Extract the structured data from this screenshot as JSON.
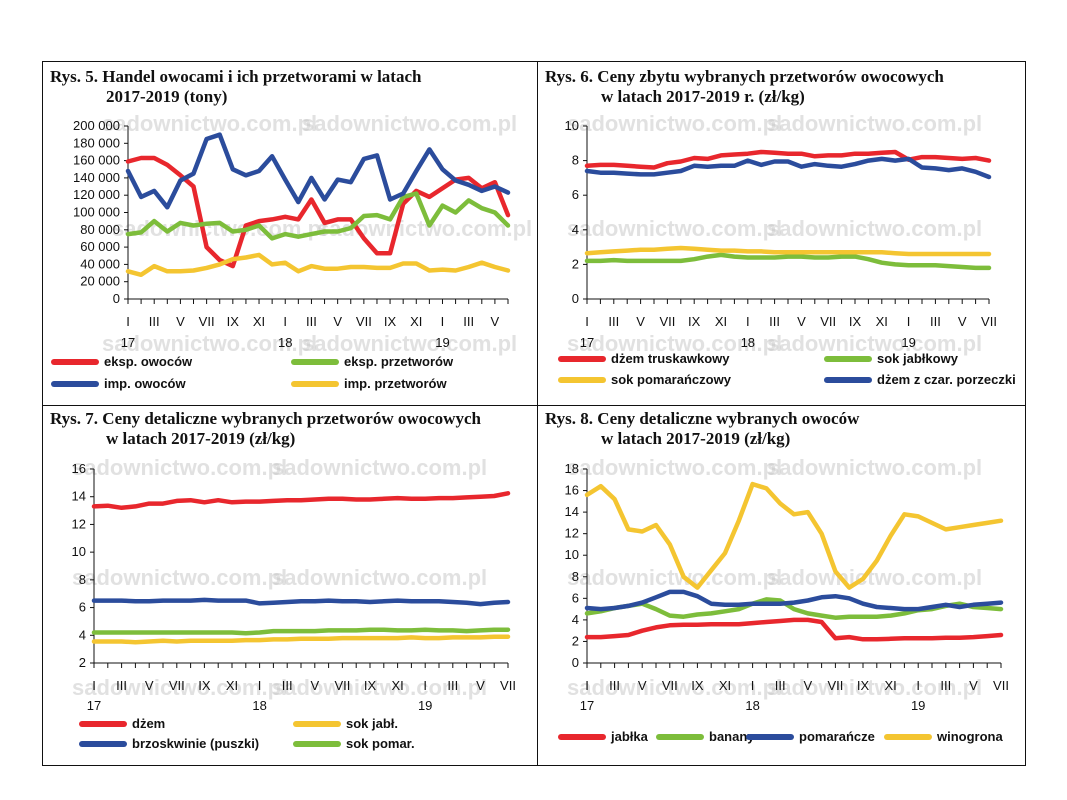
{
  "chart_data": [
    {
      "id": "rys5",
      "type": "line",
      "title_line1": "Rys. 5. Handel owocami i ich przetworami w latach",
      "title_line2": "2017-2019 (tony)",
      "ylim": [
        0,
        200000
      ],
      "y_ticks": [
        "0",
        "20 000",
        "40 000",
        "60 000",
        "80 000",
        "100 000",
        "120 000",
        "140 000",
        "160 000",
        "180 000",
        "200 000"
      ],
      "x_count": 30,
      "x_tick_labels": [
        "I",
        "III",
        "V",
        "VII",
        "IX",
        "XI",
        "I",
        "III",
        "V",
        "VII",
        "IX",
        "XI",
        "I",
        "III",
        "V"
      ],
      "year_labels": [
        {
          "label": "17",
          "index": 0
        },
        {
          "label": "18",
          "index": 12
        },
        {
          "label": "19",
          "index": 24
        }
      ],
      "watermark": "sadownictwo.com.pl",
      "series": [
        {
          "name": "eksp. owoców",
          "color": "#e8272d",
          "values": [
            159000,
            163000,
            163000,
            155000,
            143000,
            130000,
            60000,
            45000,
            38000,
            85000,
            90000,
            92000,
            95000,
            92000,
            115000,
            88000,
            92000,
            92000,
            70000,
            53000,
            53000,
            110000,
            125000,
            118000,
            128000,
            138000,
            140000,
            128000,
            135000,
            97000
          ]
        },
        {
          "name": "eksp. przetworów",
          "color": "#7dbd3b",
          "values": [
            75000,
            77000,
            90000,
            78000,
            88000,
            85000,
            87000,
            88000,
            78000,
            80000,
            85000,
            70000,
            75000,
            72000,
            75000,
            78000,
            78000,
            82000,
            96000,
            97000,
            92000,
            118000,
            122000,
            85000,
            108000,
            100000,
            114000,
            105000,
            100000,
            85000
          ]
        },
        {
          "name": "imp. owoców",
          "color": "#2b4c9c",
          "values": [
            148000,
            118000,
            125000,
            106000,
            137000,
            145000,
            185000,
            190000,
            150000,
            143000,
            148000,
            165000,
            138000,
            112000,
            140000,
            115000,
            138000,
            135000,
            162000,
            166000,
            115000,
            122000,
            148000,
            173000,
            150000,
            137000,
            132000,
            125000,
            130000,
            123000
          ]
        },
        {
          "name": "imp. przetworów",
          "color": "#f4c531",
          "values": [
            32000,
            28000,
            38000,
            32000,
            32000,
            33000,
            36000,
            40000,
            46000,
            48000,
            51000,
            40000,
            42000,
            32000,
            38000,
            35000,
            35000,
            37000,
            37000,
            36000,
            36000,
            41000,
            41000,
            33000,
            34000,
            33000,
            37000,
            42000,
            37000,
            33000
          ]
        }
      ]
    },
    {
      "id": "rys6",
      "type": "line",
      "title_line1": "Rys. 6. Ceny zbytu wybranych przetworów owocowych",
      "title_line2": "w latach 2017-2019 r. (zł/kg)",
      "ylim": [
        0,
        10
      ],
      "y_ticks": [
        "0",
        "2",
        "4",
        "6",
        "8",
        "10"
      ],
      "x_count": 31,
      "x_tick_labels": [
        "I",
        "III",
        "V",
        "VII",
        "IX",
        "XI",
        "I",
        "III",
        "V",
        "VII",
        "IX",
        "XI",
        "I",
        "III",
        "V",
        "VII"
      ],
      "year_labels": [
        {
          "label": "17",
          "index": 0
        },
        {
          "label": "18",
          "index": 12
        },
        {
          "label": "19",
          "index": 24
        }
      ],
      "watermark": "sadownictwo.com.pl",
      "series": [
        {
          "name": "dżem truskawkowy",
          "color": "#e8272d",
          "values": [
            7.7,
            7.75,
            7.75,
            7.7,
            7.65,
            7.6,
            7.85,
            7.95,
            8.15,
            8.1,
            8.3,
            8.35,
            8.4,
            8.5,
            8.45,
            8.4,
            8.4,
            8.25,
            8.3,
            8.3,
            8.4,
            8.4,
            8.45,
            8.5,
            8.05,
            8.2,
            8.2,
            8.15,
            8.1,
            8.15,
            8.0
          ]
        },
        {
          "name": "sok jabłkowy",
          "color": "#7dbd3b",
          "values": [
            2.2,
            2.2,
            2.25,
            2.2,
            2.2,
            2.2,
            2.2,
            2.2,
            2.3,
            2.45,
            2.55,
            2.45,
            2.4,
            2.4,
            2.4,
            2.45,
            2.45,
            2.4,
            2.4,
            2.45,
            2.45,
            2.3,
            2.1,
            2.0,
            1.95,
            1.95,
            1.95,
            1.9,
            1.85,
            1.8,
            1.8
          ]
        },
        {
          "name": "sok pomarańczowy",
          "color": "#f4c531",
          "values": [
            2.65,
            2.7,
            2.75,
            2.8,
            2.85,
            2.85,
            2.9,
            2.95,
            2.9,
            2.85,
            2.8,
            2.8,
            2.75,
            2.75,
            2.7,
            2.7,
            2.7,
            2.7,
            2.7,
            2.7,
            2.7,
            2.7,
            2.7,
            2.65,
            2.6,
            2.6,
            2.6,
            2.6,
            2.6,
            2.6,
            2.6
          ]
        },
        {
          "name": "dżem z czar. porzeczki",
          "color": "#2b4c9c",
          "values": [
            7.4,
            7.3,
            7.3,
            7.25,
            7.2,
            7.2,
            7.3,
            7.4,
            7.7,
            7.65,
            7.7,
            7.7,
            8.0,
            7.75,
            7.95,
            7.95,
            7.65,
            7.8,
            7.7,
            7.65,
            7.8,
            8.0,
            8.1,
            8.0,
            8.1,
            7.6,
            7.55,
            7.45,
            7.55,
            7.35,
            7.05
          ]
        }
      ]
    },
    {
      "id": "rys7",
      "type": "line",
      "title_line1": "Rys. 7. Ceny detaliczne wybranych przetworów owocowych",
      "title_line2": "w latach 2017-2019 (zł/kg)",
      "ylim": [
        2,
        16
      ],
      "y_ticks": [
        "2",
        "4",
        "6",
        "8",
        "10",
        "12",
        "14",
        "16"
      ],
      "x_count": 31,
      "x_tick_labels": [
        "I",
        "III",
        "V",
        "VII",
        "IX",
        "XI",
        "I",
        "III",
        "V",
        "VII",
        "IX",
        "XI",
        "I",
        "III",
        "V",
        "VII"
      ],
      "year_labels": [
        {
          "label": "17",
          "index": 0
        },
        {
          "label": "18",
          "index": 12
        },
        {
          "label": "19",
          "index": 24
        }
      ],
      "watermark": "sadownictwo.com.pl",
      "series": [
        {
          "name": "dżem",
          "color": "#e8272d",
          "values": [
            13.3,
            13.35,
            13.2,
            13.3,
            13.5,
            13.5,
            13.7,
            13.75,
            13.6,
            13.75,
            13.6,
            13.65,
            13.65,
            13.7,
            13.75,
            13.75,
            13.8,
            13.85,
            13.85,
            13.8,
            13.8,
            13.85,
            13.9,
            13.85,
            13.85,
            13.9,
            13.9,
            13.95,
            14.0,
            14.05,
            14.25
          ]
        },
        {
          "name": "sok jabł.",
          "color": "#f4c531",
          "values": [
            3.55,
            3.55,
            3.55,
            3.5,
            3.55,
            3.6,
            3.55,
            3.6,
            3.6,
            3.6,
            3.6,
            3.65,
            3.65,
            3.7,
            3.7,
            3.75,
            3.75,
            3.75,
            3.8,
            3.8,
            3.8,
            3.8,
            3.8,
            3.85,
            3.8,
            3.8,
            3.85,
            3.85,
            3.85,
            3.9,
            3.9
          ]
        },
        {
          "name": "brzoskwinie (puszki)",
          "color": "#2b4c9c",
          "values": [
            6.5,
            6.5,
            6.5,
            6.45,
            6.45,
            6.5,
            6.5,
            6.5,
            6.55,
            6.5,
            6.5,
            6.5,
            6.3,
            6.35,
            6.4,
            6.45,
            6.45,
            6.5,
            6.45,
            6.45,
            6.4,
            6.45,
            6.5,
            6.45,
            6.45,
            6.45,
            6.4,
            6.35,
            6.25,
            6.35,
            6.4
          ]
        },
        {
          "name": "sok pomar.",
          "color": "#7dbd3b",
          "values": [
            4.2,
            4.2,
            4.2,
            4.2,
            4.2,
            4.2,
            4.2,
            4.2,
            4.2,
            4.2,
            4.2,
            4.15,
            4.2,
            4.3,
            4.3,
            4.3,
            4.3,
            4.35,
            4.35,
            4.35,
            4.4,
            4.4,
            4.35,
            4.35,
            4.4,
            4.35,
            4.35,
            4.3,
            4.35,
            4.4,
            4.4
          ]
        }
      ]
    },
    {
      "id": "rys8",
      "type": "line",
      "title_line1": "Rys. 8. Ceny detaliczne wybranych owoców",
      "title_line2": "w latach 2017-2019 (zł/kg)",
      "ylim": [
        0,
        18
      ],
      "y_ticks": [
        "0",
        "2",
        "4",
        "6",
        "8",
        "10",
        "12",
        "14",
        "16",
        "18"
      ],
      "x_count": 31,
      "x_tick_labels": [
        "I",
        "III",
        "V",
        "VII",
        "IX",
        "XI",
        "I",
        "III",
        "V",
        "VII",
        "IX",
        "XI",
        "I",
        "III",
        "V",
        "VII"
      ],
      "year_labels": [
        {
          "label": "17",
          "index": 0
        },
        {
          "label": "18",
          "index": 12
        },
        {
          "label": "19",
          "index": 24
        }
      ],
      "watermark": "sadownictwo.com.pl",
      "series": [
        {
          "name": "jabłka",
          "color": "#e8272d",
          "values": [
            2.4,
            2.4,
            2.5,
            2.6,
            3.0,
            3.3,
            3.5,
            3.55,
            3.55,
            3.6,
            3.6,
            3.6,
            3.7,
            3.8,
            3.9,
            4.0,
            4.0,
            3.8,
            2.3,
            2.4,
            2.2,
            2.2,
            2.25,
            2.3,
            2.3,
            2.3,
            2.35,
            2.35,
            2.4,
            2.5,
            2.6
          ]
        },
        {
          "name": "banany",
          "color": "#7dbd3b",
          "values": [
            4.6,
            4.8,
            5.1,
            5.3,
            5.5,
            5.0,
            4.4,
            4.3,
            4.5,
            4.6,
            4.8,
            5.0,
            5.5,
            5.9,
            5.8,
            5.0,
            4.6,
            4.4,
            4.2,
            4.3,
            4.3,
            4.3,
            4.4,
            4.6,
            4.9,
            5.0,
            5.3,
            5.5,
            5.2,
            5.1,
            5.0
          ]
        },
        {
          "name": "pomarańcze",
          "color": "#2b4c9c",
          "values": [
            5.1,
            5.0,
            5.1,
            5.3,
            5.6,
            6.1,
            6.6,
            6.6,
            6.2,
            5.5,
            5.4,
            5.4,
            5.5,
            5.5,
            5.5,
            5.6,
            5.8,
            6.1,
            6.2,
            6.0,
            5.5,
            5.2,
            5.1,
            5.0,
            5.0,
            5.2,
            5.4,
            5.2,
            5.4,
            5.5,
            5.6
          ]
        },
        {
          "name": "winogrona",
          "color": "#f4c531",
          "values": [
            15.6,
            16.4,
            15.2,
            12.4,
            12.2,
            12.8,
            11.0,
            8.0,
            7.0,
            8.6,
            10.2,
            13.2,
            16.6,
            16.2,
            14.8,
            13.8,
            14.0,
            12.0,
            8.5,
            7.0,
            7.8,
            9.5,
            11.8,
            13.8,
            13.6,
            13.0,
            12.4,
            12.6,
            12.8,
            13.0,
            13.2
          ]
        }
      ]
    }
  ]
}
